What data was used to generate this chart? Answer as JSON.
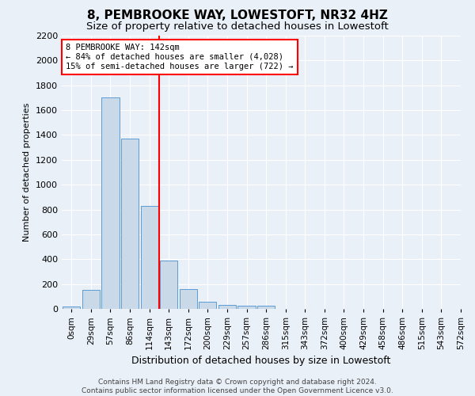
{
  "title": "8, PEMBROOKE WAY, LOWESTOFT, NR32 4HZ",
  "subtitle": "Size of property relative to detached houses in Lowestoft",
  "xlabel": "Distribution of detached houses by size in Lowestoft",
  "ylabel": "Number of detached properties",
  "footer_line1": "Contains HM Land Registry data © Crown copyright and database right 2024.",
  "footer_line2": "Contains public sector information licensed under the Open Government Licence v3.0.",
  "bin_labels": [
    "0sqm",
    "29sqm",
    "57sqm",
    "86sqm",
    "114sqm",
    "143sqm",
    "172sqm",
    "200sqm",
    "229sqm",
    "257sqm",
    "286sqm",
    "315sqm",
    "343sqm",
    "372sqm",
    "400sqm",
    "429sqm",
    "458sqm",
    "486sqm",
    "515sqm",
    "543sqm",
    "572sqm"
  ],
  "bar_heights": [
    20,
    150,
    1700,
    1370,
    830,
    390,
    160,
    60,
    30,
    25,
    25,
    0,
    0,
    0,
    0,
    0,
    0,
    0,
    0,
    0
  ],
  "bar_color": "#c9d9e8",
  "bar_edge_color": "#5b9bd5",
  "marker_bar_index": 5,
  "marker_color": "red",
  "annotation_text": "8 PEMBROOKE WAY: 142sqm\n← 84% of detached houses are smaller (4,028)\n15% of semi-detached houses are larger (722) →",
  "annotation_box_color": "white",
  "annotation_box_edge_color": "red",
  "ylim": [
    0,
    2200
  ],
  "yticks": [
    0,
    200,
    400,
    600,
    800,
    1000,
    1200,
    1400,
    1600,
    1800,
    2000,
    2200
  ],
  "bg_color": "#eaf0f8",
  "plot_bg_color": "#eaf0f8",
  "grid_color": "white",
  "title_fontsize": 11,
  "subtitle_fontsize": 9.5
}
